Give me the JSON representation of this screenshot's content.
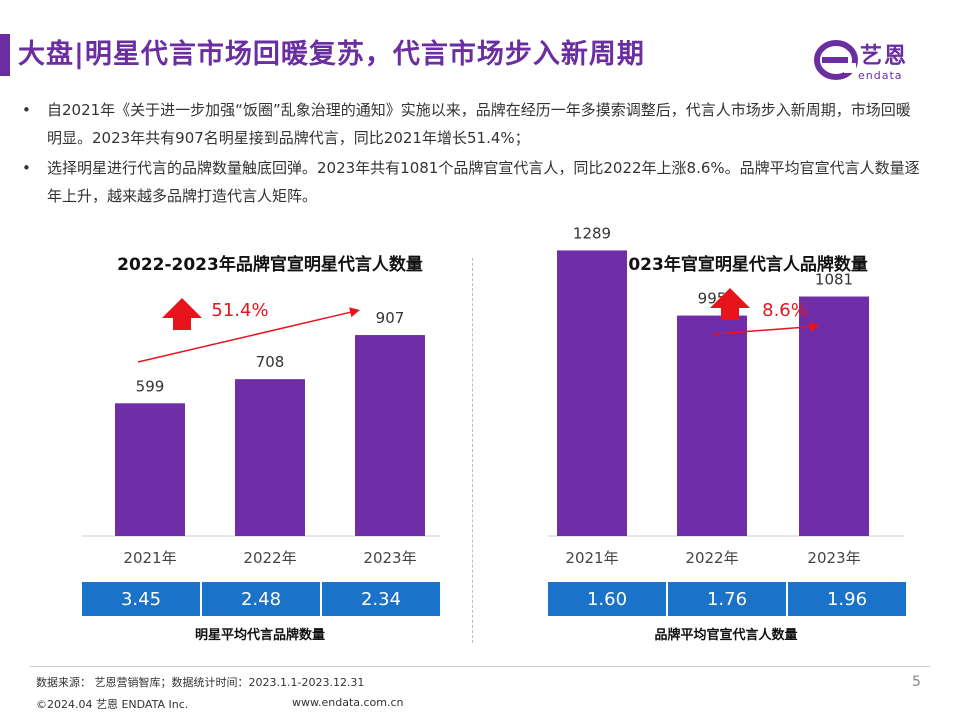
{
  "header": {
    "title": "大盘|明星代言市场回暖复苏，代言市场步入新周期",
    "accent_color": "#6a2ea0"
  },
  "logo": {
    "cn": "艺恩",
    "en": "endata"
  },
  "bullets": [
    {
      "marker": "•",
      "text": "自2021年《关于进一步加强“饭圈”乱象治理的通知》实施以来，品牌在经历一年多摸索调整后，代言人市场步入新周期，市场回暖明显。2023年共有907名明星接到品牌代言，同比2021年增长51.4%；"
    },
    {
      "marker": "•",
      "text": "选择明星进行代言的品牌数量触底回弹。2023年共有1081个品牌官宣代言人，同比2022年上涨8.6%。品牌平均官宣代言人数量逐年上升，越来越多品牌打造代言人矩阵。"
    }
  ],
  "chart_data": [
    {
      "type": "bar",
      "title": "2022-2023年品牌官宣明星代言人数量",
      "categories": [
        "2021年",
        "2022年",
        "2023年"
      ],
      "values": [
        599,
        708,
        907
      ],
      "bar_color": "#6f2da8",
      "ylim": [
        0,
        1300
      ],
      "growth_annotation": "51.4%",
      "ratio_values": [
        "3.45",
        "2.48",
        "2.34"
      ],
      "ratio_caption": "明星平均代言品牌数量"
    },
    {
      "type": "bar",
      "title": "2022-2023年官宣明星代言人品牌数量",
      "categories": [
        "2021年",
        "2022年",
        "2023年"
      ],
      "values": [
        1289,
        995,
        1081
      ],
      "bar_color": "#6f2da8",
      "ylim": [
        0,
        1300
      ],
      "growth_annotation": "8.6%",
      "ratio_values": [
        "1.60",
        "1.76",
        "1.96"
      ],
      "ratio_caption": "品牌平均官宣代言人数量"
    }
  ],
  "colors": {
    "arrow": "#e8141c",
    "ratio_bg": "#1a72c9"
  },
  "footer": {
    "source": "数据来源：  艺恩营销智库；数据统计时间：2023.1.1-2023.12.31",
    "page": "5",
    "copyright": "©2024.04 艺恩 ENDATA Inc.",
    "website": "www.endata.com.cn"
  }
}
